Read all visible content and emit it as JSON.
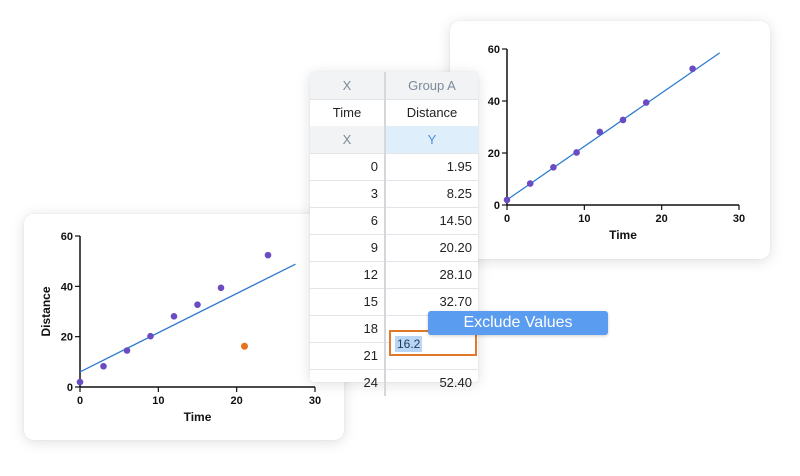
{
  "table": {
    "header_row1": {
      "x": "X",
      "y": "Group A"
    },
    "header_row2": {
      "x": "Time",
      "y": "Distance"
    },
    "header_row3": {
      "x": "X",
      "y": "Y"
    },
    "rows": [
      {
        "x": "0",
        "y": "1.95"
      },
      {
        "x": "3",
        "y": "8.25"
      },
      {
        "x": "6",
        "y": "14.50"
      },
      {
        "x": "9",
        "y": "20.20"
      },
      {
        "x": "12",
        "y": "28.10"
      },
      {
        "x": "15",
        "y": "32.70"
      },
      {
        "x": "18",
        "y": ""
      },
      {
        "x": "21",
        "y": ""
      },
      {
        "x": "24",
        "y": "52.40"
      }
    ],
    "editing_value": "16.2"
  },
  "context_menu": {
    "exclude_label": "Exclude Values"
  },
  "colors": {
    "point": "#6a4cc2",
    "outlier": "#e8731f",
    "fit_line": "#2b7bd0",
    "edit_border": "#e0792b",
    "button": "#5a9cf0"
  },
  "chart_data": [
    {
      "type": "scatter",
      "xlabel": "Time",
      "ylabel": "Distance",
      "xlim": [
        0,
        30
      ],
      "ylim": [
        0,
        60
      ],
      "xticks": [
        "0",
        "10",
        "20",
        "30"
      ],
      "yticks": [
        "0",
        "20",
        "40",
        "60"
      ],
      "points": [
        [
          0,
          1.95
        ],
        [
          3,
          8.25
        ],
        [
          6,
          14.5
        ],
        [
          9,
          20.2
        ],
        [
          12,
          28.1
        ],
        [
          15,
          32.7
        ],
        [
          18,
          39.4
        ],
        [
          24,
          52.4
        ]
      ],
      "outliers": [
        [
          21,
          16.2
        ]
      ],
      "fit_line": [
        [
          0,
          6.0
        ],
        [
          27.5,
          48.8
        ]
      ]
    },
    {
      "type": "scatter",
      "xlabel": "Time",
      "ylabel": "",
      "xlim": [
        0,
        30
      ],
      "ylim": [
        0,
        60
      ],
      "xticks": [
        "0",
        "10",
        "20",
        "30"
      ],
      "yticks": [
        "0",
        "20",
        "40",
        "60"
      ],
      "points": [
        [
          0,
          1.95
        ],
        [
          3,
          8.25
        ],
        [
          6,
          14.5
        ],
        [
          9,
          20.2
        ],
        [
          12,
          28.1
        ],
        [
          15,
          32.7
        ],
        [
          18,
          39.4
        ],
        [
          24,
          52.4
        ]
      ],
      "outliers": [],
      "fit_line": [
        [
          0,
          2.0
        ],
        [
          27.5,
          58.5
        ]
      ]
    }
  ]
}
